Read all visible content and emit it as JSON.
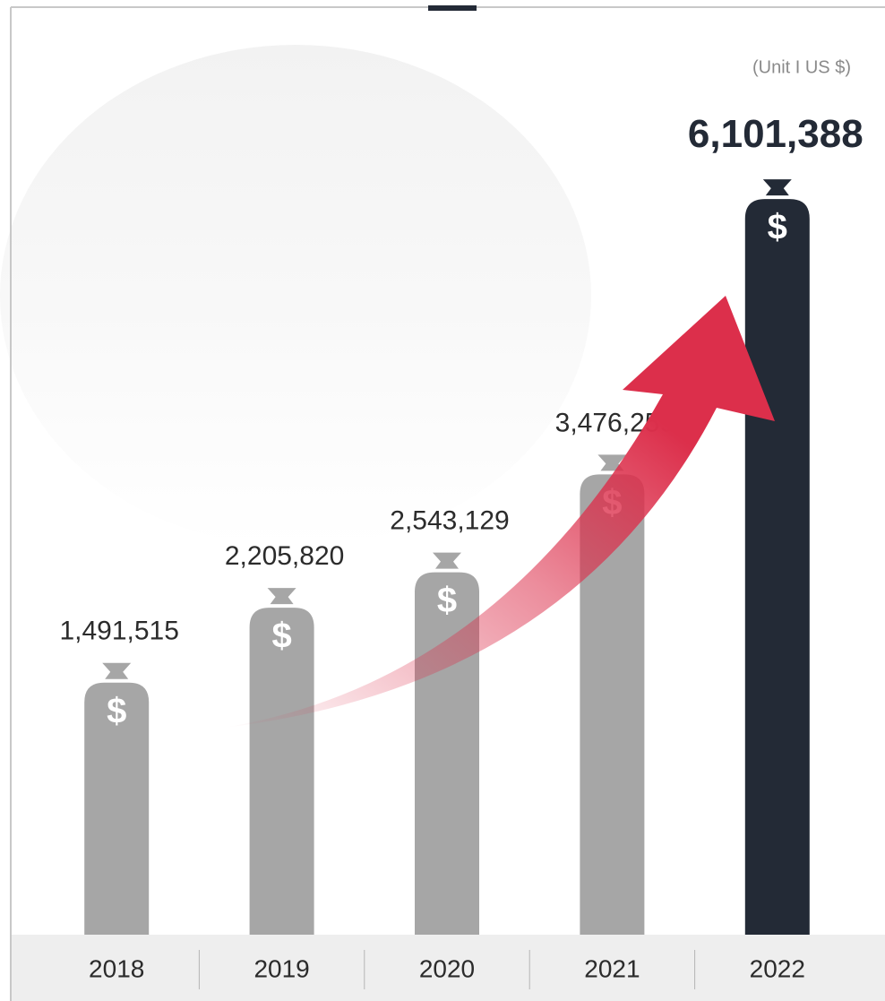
{
  "chart_data": {
    "type": "bar",
    "unit": "(Unit I US $)",
    "categories": [
      "2018",
      "2019",
      "2020",
      "2021",
      "2022"
    ],
    "values": [
      1491515,
      2205820,
      2543129,
      3476259,
      6101388
    ],
    "value_labels": [
      "1,491,515",
      "2,205,820",
      "2,543,129",
      "3,476,259",
      "6,101,388"
    ],
    "colors": [
      "#a6a6a6",
      "#a6a6a6",
      "#a6a6a6",
      "#a6a6a6",
      "#232a36"
    ],
    "bar_icon": "$",
    "ylim": [
      -1100000,
      7000000
    ]
  }
}
